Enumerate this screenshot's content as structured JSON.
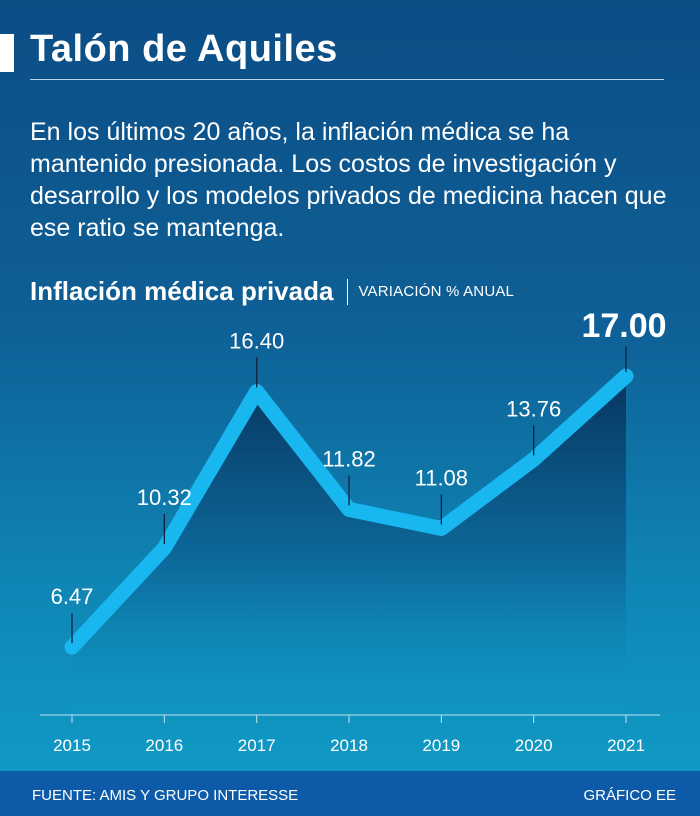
{
  "header": {
    "title": "Talón de Aquiles",
    "intro": "En los últimos 20 años, la inflación médica se ha mantenido presionada. Los costos de investigación y desarrollo y los modelos privados de medicina hacen que ese ratio se mantenga."
  },
  "chart_data": {
    "type": "area",
    "title": "Inflación médica privada",
    "subtitle": "VARIACIÓN % ANUAL",
    "categories": [
      "2015",
      "2016",
      "2017",
      "2018",
      "2019",
      "2020",
      "2021"
    ],
    "values": [
      6.47,
      10.32,
      16.4,
      11.82,
      11.08,
      13.76,
      17.0
    ],
    "value_labels": [
      "6.47",
      "10.32",
      "16.40",
      "11.82",
      "11.08",
      "13.76",
      "17.00"
    ],
    "highlight_index": 6,
    "xlabel": "",
    "ylabel": "",
    "ylim": [
      5,
      17
    ],
    "line_color": "#19b7f0"
  },
  "footer": {
    "source": "FUENTE: AMIS Y GRUPO INTERESSE",
    "credit": "GRÁFICO EE"
  }
}
